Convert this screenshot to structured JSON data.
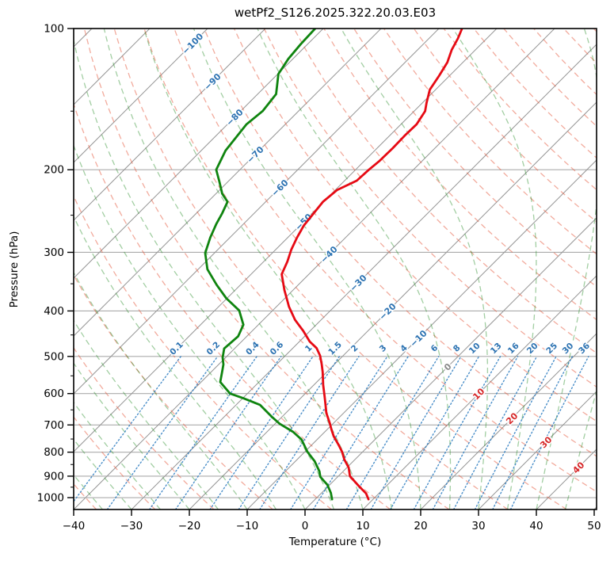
{
  "title": "wetPf2_S126.2025.322.20.03.E03",
  "axes": {
    "xlabel": "Temperature (°C)",
    "ylabel": "Pressure (hPa)",
    "x_ticks": [
      -40,
      -30,
      -20,
      -10,
      0,
      10,
      20,
      30,
      40,
      50
    ],
    "y_ticks": [
      100,
      200,
      300,
      400,
      500,
      600,
      700,
      800,
      900,
      1000
    ],
    "xlim": [
      -40,
      50
    ],
    "ylim": [
      1060,
      100
    ]
  },
  "chart_data": {
    "type": "line",
    "variant": "skew-t-log-p",
    "title": "wetPf2_S126.2025.322.20.03.E03",
    "xlabel": "Temperature (°C)",
    "ylabel": "Pressure (hPa)",
    "x_range_c": [
      -40,
      50
    ],
    "p_range_hpa": [
      100,
      1060
    ],
    "skew_deg": 45,
    "legend_position": "none",
    "grid": true,
    "series": [
      {
        "name": "temperature",
        "color": "#e60a14",
        "style": "solid",
        "points_p_t": [
          [
            1008,
            9.2
          ],
          [
            980,
            7.8
          ],
          [
            940,
            4.9
          ],
          [
            900,
            2.0
          ],
          [
            863,
            0.3
          ],
          [
            830,
            -1.8
          ],
          [
            798,
            -3.6
          ],
          [
            770,
            -5.5
          ],
          [
            740,
            -7.7
          ],
          [
            715,
            -9.3
          ],
          [
            696,
            -10.5
          ],
          [
            660,
            -13.0
          ],
          [
            630,
            -14.8
          ],
          [
            608,
            -16.2
          ],
          [
            575,
            -18.4
          ],
          [
            540,
            -20.7
          ],
          [
            520,
            -22.2
          ],
          [
            498,
            -24.0
          ],
          [
            480,
            -25.9
          ],
          [
            465,
            -28.2
          ],
          [
            441,
            -31.2
          ],
          [
            418,
            -34.5
          ],
          [
            392,
            -37.8
          ],
          [
            361,
            -41.5
          ],
          [
            334,
            -44.7
          ],
          [
            314,
            -45.9
          ],
          [
            296,
            -47.3
          ],
          [
            279,
            -48.4
          ],
          [
            263,
            -49.3
          ],
          [
            248,
            -49.7
          ],
          [
            234,
            -50.1
          ],
          [
            221,
            -49.7
          ],
          [
            211,
            -47.9
          ],
          [
            200,
            -47.7
          ],
          [
            192,
            -47.4
          ],
          [
            180,
            -47.3
          ],
          [
            169,
            -47.4
          ],
          [
            160,
            -47.3
          ],
          [
            150,
            -48.1
          ],
          [
            144,
            -49.3
          ],
          [
            135,
            -51.0
          ],
          [
            126,
            -51.8
          ],
          [
            118,
            -52.7
          ],
          [
            111,
            -54.1
          ],
          [
            105,
            -55.0
          ],
          [
            100,
            -56.0
          ]
        ]
      },
      {
        "name": "dewpoint",
        "color": "#0f840f",
        "style": "solid",
        "points_p_t": [
          [
            1008,
            2.9
          ],
          [
            977,
            1.6
          ],
          [
            939,
            -0.4
          ],
          [
            903,
            -3.0
          ],
          [
            879,
            -4.1
          ],
          [
            836,
            -6.7
          ],
          [
            798,
            -9.6
          ],
          [
            752,
            -12.7
          ],
          [
            724,
            -15.5
          ],
          [
            696,
            -19.2
          ],
          [
            674,
            -21.6
          ],
          [
            634,
            -25.9
          ],
          [
            614,
            -29.9
          ],
          [
            600,
            -33.0
          ],
          [
            567,
            -36.7
          ],
          [
            540,
            -38.1
          ],
          [
            520,
            -39.2
          ],
          [
            503,
            -40.5
          ],
          [
            481,
            -41.8
          ],
          [
            453,
            -41.5
          ],
          [
            428,
            -42.6
          ],
          [
            399,
            -45.8
          ],
          [
            376,
            -50.1
          ],
          [
            352,
            -54.1
          ],
          [
            326,
            -58.4
          ],
          [
            301,
            -61.6
          ],
          [
            279,
            -63.4
          ],
          [
            261,
            -64.7
          ],
          [
            248,
            -65.5
          ],
          [
            234,
            -66.6
          ],
          [
            225,
            -68.9
          ],
          [
            212,
            -71.5
          ],
          [
            200,
            -74.1
          ],
          [
            182,
            -75.8
          ],
          [
            160,
            -76.7
          ],
          [
            150,
            -76.2
          ],
          [
            138,
            -76.8
          ],
          [
            125,
            -79.9
          ],
          [
            116,
            -80.8
          ],
          [
            108,
            -81.2
          ],
          [
            100,
            -81.4
          ]
        ]
      }
    ],
    "background_lines": {
      "isotherms": {
        "color": "#969696",
        "from_c": -160,
        "to_c": 50,
        "step_c": 10,
        "style": "solid"
      },
      "dry_adiabats": {
        "color": "#e5573b",
        "style": "dashed",
        "theta_from_c": -40,
        "theta_to_c": 200,
        "step_c": 10
      },
      "moist_adiabats": {
        "color": "#228b22",
        "style": "dashed",
        "start_t_from_c": -40,
        "start_t_to_c": 45,
        "step_c": 5
      },
      "mixing_ratio": {
        "color": "#2b7bbf",
        "style": "dotted",
        "values_g_kg": [
          0.1,
          0.2,
          0.4,
          0.6,
          1,
          1.5,
          2,
          3,
          4,
          6,
          8,
          10,
          13,
          16,
          20,
          25,
          30,
          36
        ],
        "top_p_hpa": 500
      },
      "pressure_grid": {
        "color": "#909090",
        "levels_hpa": [
          100,
          200,
          300,
          400,
          500,
          600,
          700,
          800,
          900,
          1000
        ]
      }
    },
    "isotherm_labels": {
      "blue_values": [
        -100,
        -90,
        -80,
        -70,
        -60,
        -50,
        -40,
        -30,
        -20,
        -10
      ],
      "gray_value": 0,
      "red_values": [
        10,
        20,
        30,
        40
      ],
      "blue_color": "#2d73b2",
      "gray_color": "#8a8a8a",
      "red_color": "#d62728"
    },
    "mixing_ratio_labels": {
      "values": [
        0.1,
        0.2,
        0.4,
        0.6,
        1,
        1.5,
        2,
        3,
        4,
        6,
        8,
        10,
        13,
        16,
        20,
        25,
        30,
        36
      ],
      "color": "#2d73b2",
      "at_pressure_hpa": 500
    }
  }
}
